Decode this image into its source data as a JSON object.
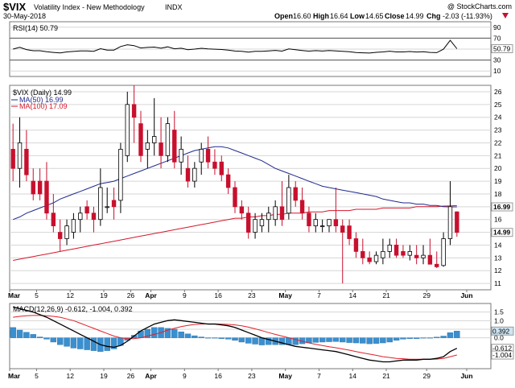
{
  "header": {
    "symbol": "$VIX",
    "name": "Volatility Index - New Methodology",
    "exchange": "INDX",
    "date": "30-May-2018",
    "copyright": "@ StockCharts.com",
    "open_label": "Open",
    "open": "16.60",
    "high_label": "High",
    "high": "16.64",
    "low_label": "Low",
    "low": "14.65",
    "close_label": "Close",
    "close": "14.99",
    "chg_label": "Chg",
    "chg": "-2.03 (-11.93%)",
    "chg_icon": "down-triangle-icon"
  },
  "colors": {
    "up": "#ffffff",
    "down": "#c8102e",
    "ma50": "#1f2a8c",
    "ma100": "#d4182b",
    "rsi": "#000000",
    "macd": "#000000",
    "signal": "#e0202a",
    "hist": "#3a8fcf",
    "label_bg": "#cfe4f2"
  },
  "chart_data": [
    {
      "type": "line",
      "name": "rsi",
      "title": "RSI(14) 50.79",
      "ylim": [
        0,
        100
      ],
      "ticks": [
        "90",
        "70",
        "50.79",
        "30",
        "10"
      ],
      "levels": [
        70,
        30
      ],
      "values": [
        50.79
      ]
    },
    {
      "type": "candlestick",
      "name": "price",
      "title": "$VIX (Daily) 14.99",
      "legend": [
        "$VIX (Daily) 14.99",
        "MA(50) 16.99",
        "MA(100) 17.09"
      ],
      "ylim": [
        10.5,
        26.5
      ],
      "yticks": [
        "26",
        "25",
        "24",
        "23",
        "22",
        "21",
        "20",
        "19",
        "18",
        "17",
        "16",
        "15",
        "14",
        "13",
        "12",
        "11"
      ],
      "ytick_values": [
        26,
        25,
        24,
        23,
        22,
        21,
        20,
        19,
        18,
        17,
        16,
        15,
        14,
        13,
        12,
        11
      ],
      "last_labels": [
        {
          "text": "16.99",
          "value": 16.99
        },
        {
          "text": "14.99",
          "value": 14.99
        }
      ],
      "x_labels": [
        "Mar",
        "5",
        "12",
        "19",
        "26",
        "Apr",
        "9",
        "16",
        "23",
        "May",
        "7",
        "14",
        "21",
        "29",
        "Jun"
      ],
      "candles": [
        [
          21.5,
          23.5,
          19.0,
          20.0
        ],
        [
          20.0,
          24.0,
          18.5,
          22.0
        ],
        [
          21.5,
          23.0,
          19.0,
          19.5
        ],
        [
          19.0,
          20.0,
          17.5,
          18.0
        ],
        [
          19.0,
          20.0,
          17.5,
          18.0
        ],
        [
          19.0,
          20.5,
          16.0,
          16.5
        ],
        [
          16.5,
          18.0,
          15.0,
          15.5
        ],
        [
          15.0,
          16.0,
          13.5,
          14.5
        ],
        [
          14.5,
          16.0,
          14.0,
          15.5
        ],
        [
          15.0,
          16.5,
          14.5,
          16.0
        ],
        [
          16.0,
          17.0,
          15.0,
          16.5
        ],
        [
          17.0,
          17.5,
          16.0,
          16.5
        ],
        [
          16.5,
          17.0,
          15.0,
          16.0
        ],
        [
          16.0,
          20.0,
          15.5,
          18.5
        ],
        [
          17.0,
          18.5,
          16.5,
          17.0
        ],
        [
          17.5,
          18.5,
          16.0,
          17.0
        ],
        [
          17.5,
          22.0,
          16.5,
          21.5
        ],
        [
          21.0,
          26.0,
          20.5,
          25.0
        ],
        [
          25.0,
          26.5,
          22.0,
          24.0
        ],
        [
          23.5,
          24.5,
          20.5,
          21.0
        ],
        [
          21.5,
          23.0,
          20.0,
          22.0
        ],
        [
          22.0,
          25.5,
          21.0,
          22.5
        ],
        [
          22.0,
          24.0,
          20.0,
          21.0
        ],
        [
          21.0,
          24.0,
          20.5,
          23.5
        ],
        [
          23.0,
          24.5,
          20.0,
          20.5
        ],
        [
          20.5,
          22.5,
          19.5,
          21.5
        ],
        [
          20.0,
          21.0,
          18.5,
          19.0
        ],
        [
          19.0,
          20.5,
          18.5,
          20.0
        ],
        [
          20.5,
          22.0,
          19.5,
          21.5
        ],
        [
          21.5,
          22.5,
          20.0,
          20.5
        ],
        [
          20.5,
          21.5,
          19.5,
          20.0
        ],
        [
          20.5,
          21.0,
          19.0,
          19.5
        ],
        [
          19.5,
          20.0,
          18.0,
          18.5
        ],
        [
          18.5,
          19.0,
          16.5,
          17.0
        ],
        [
          17.0,
          17.5,
          16.0,
          16.5
        ],
        [
          16.5,
          17.0,
          14.5,
          15.0
        ],
        [
          15.0,
          16.5,
          14.5,
          16.0
        ],
        [
          15.5,
          16.5,
          15.0,
          16.0
        ],
        [
          16.0,
          17.0,
          15.0,
          16.5
        ],
        [
          16.0,
          17.5,
          15.5,
          17.0
        ],
        [
          17.0,
          19.0,
          15.5,
          16.0
        ],
        [
          16.5,
          19.5,
          16.0,
          18.5
        ],
        [
          18.5,
          19.0,
          17.0,
          17.5
        ],
        [
          17.5,
          18.5,
          16.0,
          16.5
        ],
        [
          16.5,
          17.0,
          15.0,
          15.5
        ],
        [
          15.5,
          16.5,
          15.0,
          16.0
        ],
        [
          15.5,
          16.0,
          15.0,
          15.5
        ],
        [
          15.5,
          16.0,
          15.0,
          16.0
        ],
        [
          16.0,
          18.5,
          15.0,
          15.5
        ],
        [
          15.5,
          16.0,
          11.0,
          15.0
        ],
        [
          15.5,
          16.0,
          14.0,
          14.5
        ],
        [
          14.5,
          15.0,
          13.0,
          13.5
        ],
        [
          13.5,
          14.5,
          12.5,
          13.0
        ],
        [
          13.0,
          13.5,
          12.5,
          12.7
        ],
        [
          12.7,
          13.5,
          12.5,
          13.2
        ],
        [
          13.0,
          14.5,
          12.5,
          13.5
        ],
        [
          13.5,
          14.5,
          13.0,
          14.0
        ],
        [
          14.0,
          14.5,
          13.0,
          13.2
        ],
        [
          13.5,
          14.0,
          13.0,
          13.2
        ],
        [
          13.2,
          14.0,
          12.8,
          13.5
        ],
        [
          13.2,
          14.0,
          12.5,
          13.0
        ],
        [
          13.0,
          14.0,
          12.5,
          13.2
        ],
        [
          13.2,
          14.5,
          12.5,
          12.5
        ],
        [
          12.5,
          13.5,
          12.2,
          12.3
        ],
        [
          12.4,
          15.0,
          12.3,
          14.5
        ],
        [
          14.5,
          19.0,
          14.0,
          17.0
        ],
        [
          16.6,
          16.64,
          14.65,
          14.99
        ]
      ],
      "ma50": [
        16.0,
        16.2,
        16.5,
        16.7,
        16.9,
        17.1,
        17.3,
        17.6,
        17.8,
        18.0,
        18.2,
        18.4,
        18.6,
        18.8,
        18.9,
        19.0,
        19.2,
        19.4,
        19.6,
        19.8,
        20.0,
        20.2,
        20.4,
        20.6,
        20.8,
        21.0,
        21.2,
        21.4,
        21.5,
        21.6,
        21.7,
        21.7,
        21.6,
        21.4,
        21.2,
        21.0,
        20.8,
        20.6,
        20.3,
        20.0,
        19.8,
        19.6,
        19.4,
        19.2,
        19.0,
        18.8,
        18.6,
        18.5,
        18.4,
        18.3,
        18.2,
        18.1,
        18.0,
        17.9,
        17.8,
        17.6,
        17.5,
        17.4,
        17.3,
        17.3,
        17.2,
        17.2,
        17.1,
        17.1,
        17.0,
        16.99,
        16.99
      ],
      "ma100": [
        12.8,
        12.9,
        13.0,
        13.1,
        13.2,
        13.3,
        13.4,
        13.5,
        13.6,
        13.7,
        13.8,
        13.9,
        14.0,
        14.1,
        14.2,
        14.3,
        14.4,
        14.5,
        14.6,
        14.7,
        14.8,
        14.9,
        15.0,
        15.1,
        15.2,
        15.3,
        15.4,
        15.5,
        15.6,
        15.7,
        15.8,
        15.9,
        16.0,
        16.1,
        16.1,
        16.2,
        16.2,
        16.3,
        16.3,
        16.4,
        16.4,
        16.5,
        16.5,
        16.5,
        16.6,
        16.6,
        16.6,
        16.7,
        16.7,
        16.7,
        16.7,
        16.8,
        16.8,
        16.8,
        16.8,
        16.9,
        16.9,
        16.9,
        16.9,
        16.9,
        17.0,
        17.0,
        17.0,
        17.0,
        17.05,
        17.07,
        17.09
      ]
    },
    {
      "type": "line",
      "name": "macd",
      "title": "MACD(12,26,9) -0.612, -1.004, 0.392",
      "ylim": [
        -1.8,
        2.0
      ],
      "yticks": [
        "1.5",
        "1.0",
        "0.5",
        "0.0"
      ],
      "ytick_values": [
        1.5,
        1.0,
        0.5,
        0.0
      ],
      "last_labels": [
        {
          "text": "0.392",
          "value": 0.392
        },
        {
          "text": "-0.612",
          "value": -0.612
        },
        {
          "text": "-1.004",
          "value": -1.004
        }
      ],
      "macd": [
        1.8,
        1.7,
        1.6,
        1.5,
        1.35,
        1.2,
        1.0,
        0.8,
        0.6,
        0.4,
        0.2,
        0.0,
        -0.2,
        -0.4,
        -0.5,
        -0.55,
        -0.45,
        -0.2,
        0.1,
        0.4,
        0.6,
        0.8,
        0.9,
        1.0,
        1.05,
        1.0,
        0.95,
        0.9,
        0.85,
        0.8,
        0.8,
        0.75,
        0.7,
        0.6,
        0.45,
        0.3,
        0.15,
        0.0,
        -0.1,
        -0.2,
        -0.3,
        -0.4,
        -0.5,
        -0.55,
        -0.6,
        -0.65,
        -0.7,
        -0.75,
        -0.8,
        -0.9,
        -1.0,
        -1.1,
        -1.2,
        -1.3,
        -1.35,
        -1.4,
        -1.4,
        -1.35,
        -1.3,
        -1.3,
        -1.3,
        -1.25,
        -1.25,
        -1.2,
        -1.1,
        -0.8,
        -0.612
      ],
      "signal": [
        1.2,
        1.25,
        1.28,
        1.3,
        1.3,
        1.28,
        1.25,
        1.2,
        1.1,
        1.0,
        0.85,
        0.7,
        0.55,
        0.4,
        0.25,
        0.1,
        0.0,
        -0.05,
        -0.05,
        0.0,
        0.1,
        0.2,
        0.3,
        0.45,
        0.55,
        0.65,
        0.72,
        0.78,
        0.8,
        0.82,
        0.82,
        0.8,
        0.78,
        0.75,
        0.7,
        0.62,
        0.52,
        0.42,
        0.3,
        0.2,
        0.1,
        0.0,
        -0.1,
        -0.2,
        -0.3,
        -0.38,
        -0.45,
        -0.52,
        -0.58,
        -0.65,
        -0.72,
        -0.8,
        -0.88,
        -0.95,
        -1.02,
        -1.1,
        -1.15,
        -1.2,
        -1.22,
        -1.25,
        -1.25,
        -1.25,
        -1.25,
        -1.24,
        -1.2,
        -1.1,
        -1.004
      ]
    }
  ]
}
